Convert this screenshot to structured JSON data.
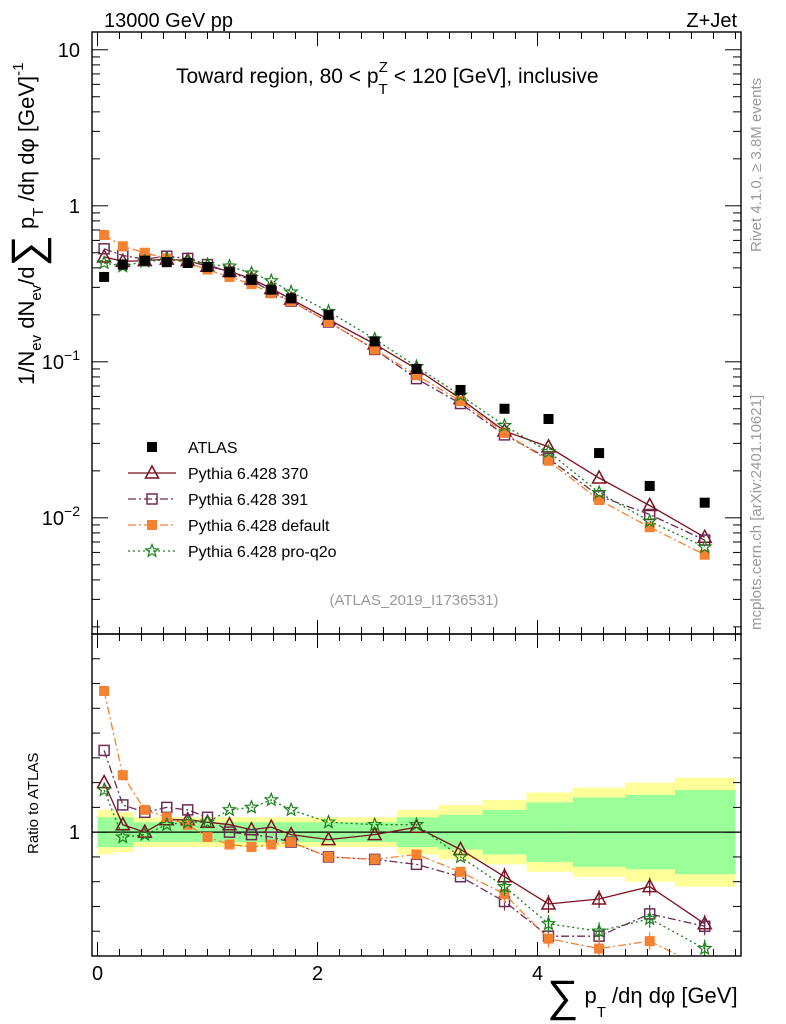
{
  "header": {
    "energy_label": "13000 GeV pp",
    "process_label": "Z+Jet"
  },
  "side_labels": {
    "rivet": "Rivet 4.1.0, ≥ 3.8M events",
    "mcplots": "mcplots.cern.ch [arXiv:2401.10621]"
  },
  "chart_data": {
    "type": "scatter",
    "title": "Toward region, 80 < p_T^Z < 120 [GeV], inclusive",
    "title_parts": {
      "a": "Toward region, 80 < p",
      "sub": "T",
      "sup": "Z",
      "b": " < 120 [GeV], inclusive"
    },
    "analysis_id": "(ATLAS_2019_I1736531)",
    "ylabel": "1/N_ev dN_ev/d∑ p_T /dη dφ  [GeV]^-1",
    "ylabel_parts": {
      "a": "1/N",
      "ev1": "ev",
      "b": " dN",
      "ev2": "ev",
      "c": "/d",
      "sigma": "∑",
      "d": " p",
      "T": "T",
      "e": " /dη dφ  [GeV]",
      "pow": "-1"
    },
    "xlabel": "∑ p_T /dη dφ [GeV]",
    "xlabel_parts": {
      "sigma": "∑",
      "a": " p",
      "T": "T",
      "b": " /dη dφ [GeV]"
    },
    "yscale": "log",
    "ylim": [
      0.0018,
      13
    ],
    "xlim": [
      -0.05,
      5.85
    ],
    "x_ticks": [
      "0",
      "2",
      "4"
    ],
    "y_ticks": [
      {
        "value": 10,
        "label": "10"
      },
      {
        "value": 1,
        "label": "1"
      },
      {
        "value": 0.1,
        "base": "10",
        "exp": "−1"
      },
      {
        "value": 0.01,
        "base": "10",
        "exp": "−2"
      }
    ],
    "x": [
      0.06,
      0.23,
      0.43,
      0.63,
      0.82,
      1.0,
      1.2,
      1.4,
      1.58,
      1.76,
      2.1,
      2.52,
      2.9,
      3.3,
      3.7,
      4.1,
      4.56,
      5.02,
      5.52
    ],
    "series": [
      {
        "name": "ATLAS",
        "marker": "square-filled",
        "color": "#000000",
        "values": [
          0.35,
          0.42,
          0.445,
          0.435,
          0.43,
          0.405,
          0.375,
          0.335,
          0.29,
          0.255,
          0.2,
          0.135,
          0.09,
          0.066,
          0.05,
          0.043,
          0.026,
          0.016,
          0.0125
        ]
      },
      {
        "name": "Pythia 6.428 370",
        "marker": "triangle-open",
        "color": "#7b1020",
        "line": "solid",
        "values": [
          0.47,
          0.44,
          0.445,
          0.455,
          0.445,
          0.41,
          0.38,
          0.34,
          0.295,
          0.252,
          0.187,
          0.13,
          0.09,
          0.058,
          0.036,
          0.0285,
          0.018,
          0.012,
          0.0075
        ]
      },
      {
        "name": "Pythia 6.428 391",
        "marker": "square-open",
        "color": "#6b2d55",
        "line": "dashdot",
        "values": [
          0.53,
          0.48,
          0.455,
          0.475,
          0.46,
          0.42,
          0.375,
          0.335,
          0.28,
          0.245,
          0.18,
          0.12,
          0.078,
          0.054,
          0.034,
          0.024,
          0.0138,
          0.0105,
          0.0072
        ]
      },
      {
        "name": "Pythia 6.428 default",
        "marker": "square-filled",
        "color": "#f58232",
        "line": "dashdot",
        "values": [
          0.65,
          0.55,
          0.5,
          0.46,
          0.43,
          0.39,
          0.35,
          0.315,
          0.275,
          0.245,
          0.18,
          0.12,
          0.082,
          0.056,
          0.035,
          0.0232,
          0.013,
          0.0087,
          0.0058
        ]
      },
      {
        "name": "Pythia 6.428 pro-q2o",
        "marker": "star-open",
        "color": "#1a7f1a",
        "line": "dotted",
        "values": [
          0.43,
          0.41,
          0.44,
          0.45,
          0.44,
          0.42,
          0.41,
          0.37,
          0.33,
          0.28,
          0.21,
          0.14,
          0.093,
          0.061,
          0.039,
          0.0265,
          0.0145,
          0.0095,
          0.0065
        ]
      }
    ],
    "ratio": {
      "ylabel": "Ratio to ATLAS",
      "y_tick_label": "1",
      "ylim": [
        0.5,
        1.8
      ],
      "band_edges": [
        0.0,
        0.14,
        0.33,
        0.53,
        0.73,
        0.91,
        1.1,
        1.3,
        1.5,
        1.67,
        1.86,
        2.33,
        2.72,
        3.1,
        3.5,
        3.9,
        4.32,
        4.8,
        5.25,
        5.8
      ],
      "band_inner": [
        0.06,
        0.06,
        0.04,
        0.04,
        0.04,
        0.04,
        0.04,
        0.04,
        0.04,
        0.04,
        0.04,
        0.04,
        0.06,
        0.07,
        0.09,
        0.12,
        0.14,
        0.15,
        0.17
      ],
      "band_outer": [
        0.09,
        0.08,
        0.06,
        0.06,
        0.06,
        0.06,
        0.06,
        0.06,
        0.06,
        0.06,
        0.06,
        0.06,
        0.09,
        0.11,
        0.13,
        0.16,
        0.18,
        0.2,
        0.22
      ],
      "series": [
        {
          "name": "Pythia 6.428 370",
          "values": [
            1.2,
            1.03,
            1.0,
            1.05,
            1.05,
            1.04,
            1.03,
            1.01,
            1.02,
            0.99,
            0.97,
            0.99,
            1.02,
            0.93,
            0.82,
            0.71,
            0.73,
            0.78,
            0.63
          ]
        },
        {
          "name": "Pythia 6.428 391",
          "values": [
            1.33,
            1.11,
            1.08,
            1.1,
            1.09,
            1.06,
            1.0,
            0.99,
            0.98,
            0.96,
            0.9,
            0.89,
            0.87,
            0.82,
            0.72,
            0.58,
            0.58,
            0.67,
            0.62
          ]
        },
        {
          "name": "Pythia 6.428 default",
          "values": [
            1.57,
            1.23,
            1.09,
            1.06,
            1.03,
            0.98,
            0.95,
            0.94,
            0.95,
            0.96,
            0.9,
            0.89,
            0.91,
            0.84,
            0.75,
            0.57,
            0.53,
            0.56,
            0.45
          ]
        },
        {
          "name": "Pythia 6.428 pro-q2o",
          "values": [
            1.17,
            0.98,
            0.99,
            1.03,
            1.04,
            1.04,
            1.09,
            1.1,
            1.13,
            1.09,
            1.04,
            1.03,
            1.03,
            0.9,
            0.78,
            0.63,
            0.6,
            0.65,
            0.53
          ]
        }
      ]
    }
  }
}
